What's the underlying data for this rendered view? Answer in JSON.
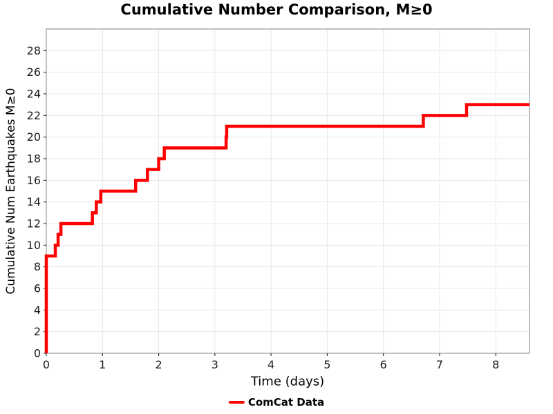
{
  "header": {
    "title": "Cumulative Number Comparison, M≥0"
  },
  "chart_data": {
    "type": "line",
    "subtype": "cumulative-step-post",
    "title": "Cumulative Number Comparison, M≥0",
    "xlabel": "Time (days)",
    "ylabel": "Cumulative Num Earthquakes M≥0",
    "xlim": [
      0,
      8.6
    ],
    "ylim": [
      0,
      30
    ],
    "xticks": [
      0,
      1,
      2,
      3,
      4,
      5,
      6,
      7,
      8
    ],
    "yticks": [
      0,
      2,
      4,
      6,
      8,
      10,
      12,
      14,
      16,
      18,
      20,
      22,
      24,
      26,
      28
    ],
    "grid": true,
    "legend_position": "bottom-center",
    "series": [
      {
        "name": "ComCat Data",
        "color": "#FF0000",
        "line_width": 4.5,
        "start": [
          0,
          0
        ],
        "x": [
          0.0,
          0.16,
          0.21,
          0.26,
          0.82,
          0.89,
          0.97,
          1.59,
          1.8,
          2.0,
          2.1,
          3.2,
          3.21,
          6.71,
          7.48
        ],
        "y": [
          9,
          10,
          11,
          12,
          13,
          14,
          15,
          16,
          17,
          18,
          19,
          20,
          21,
          22,
          23
        ],
        "x_end": 8.6
      }
    ]
  },
  "legend": {
    "items": [
      {
        "label": "ComCat Data",
        "color": "#FF0000"
      }
    ]
  },
  "colors": {
    "background": "#ffffff",
    "grid": "#e7e7e7",
    "plot_border": "#a6a6a6",
    "tick": "#333333",
    "tick_text": "#1a1a1a",
    "accent": "#FF0000"
  }
}
